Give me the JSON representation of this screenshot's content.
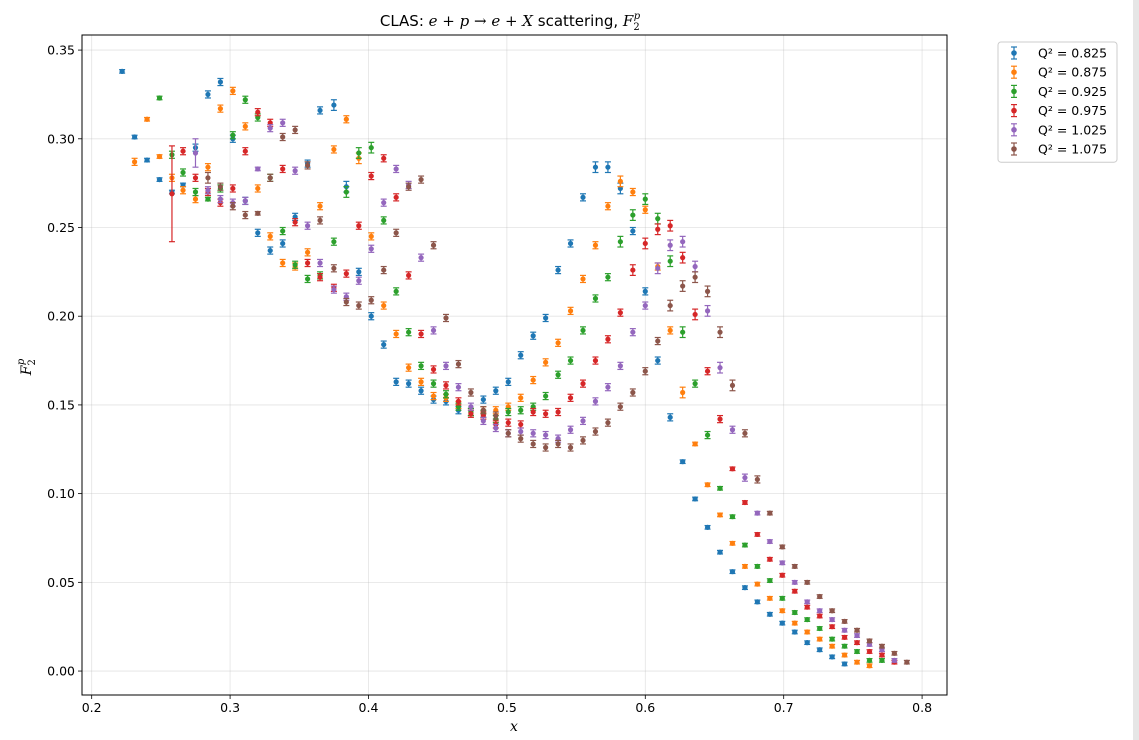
{
  "chart_data": {
    "type": "scatter",
    "title_prefix": "CLAS: ",
    "title_math": "e + p → e + X",
    "title_suffix": " scattering, ",
    "title_f": "F",
    "title_sub": "2",
    "title_sup": "p",
    "xlabel": "x",
    "ylabel_main": "F",
    "ylabel_sub": "2",
    "ylabel_sup": "p",
    "xlim": [
      0.193,
      0.818
    ],
    "ylim": [
      -0.0135,
      0.3585
    ],
    "xticks": [
      0.2,
      0.3,
      0.4,
      0.5,
      0.6,
      0.7,
      0.8
    ],
    "xtick_labels": [
      "0.2",
      "0.3",
      "0.4",
      "0.5",
      "0.6",
      "0.7",
      "0.8"
    ],
    "yticks": [
      0.0,
      0.05,
      0.1,
      0.15,
      0.2,
      0.25,
      0.3,
      0.35
    ],
    "ytick_labels": [
      "0.00",
      "0.05",
      "0.10",
      "0.15",
      "0.20",
      "0.25",
      "0.30",
      "0.35"
    ],
    "grid": true,
    "legend_position": "outside top-right",
    "series": [
      {
        "name": "Q² = 0.825",
        "color": "#1f77b4",
        "x": [
          0.222,
          0.231,
          0.24,
          0.249,
          0.258,
          0.266,
          0.275,
          0.284,
          0.293,
          0.302,
          0.311,
          0.32,
          0.329,
          0.338,
          0.347,
          0.356,
          0.365,
          0.375,
          0.384,
          0.393,
          0.402,
          0.411,
          0.42,
          0.429,
          0.438,
          0.447,
          0.456,
          0.465,
          0.474,
          0.483,
          0.492,
          0.501,
          0.51,
          0.519,
          0.528,
          0.537,
          0.546,
          0.555,
          0.564,
          0.573,
          0.582,
          0.591,
          0.6,
          0.609,
          0.618,
          0.627,
          0.636,
          0.645,
          0.654,
          0.663,
          0.672,
          0.681,
          0.69,
          0.699,
          0.708,
          0.717,
          0.726,
          0.735,
          0.744
        ],
        "y": [
          0.338,
          0.301,
          0.288,
          0.277,
          0.27,
          0.274,
          0.295,
          0.325,
          0.332,
          0.3,
          0.265,
          0.247,
          0.237,
          0.241,
          0.256,
          0.286,
          0.316,
          0.319,
          0.273,
          0.225,
          0.2,
          0.184,
          0.163,
          0.162,
          0.158,
          0.153,
          0.152,
          0.147,
          0.146,
          0.153,
          0.158,
          0.163,
          0.178,
          0.189,
          0.199,
          0.226,
          0.241,
          0.267,
          0.284,
          0.284,
          0.272,
          0.248,
          0.214,
          0.175,
          0.143,
          0.118,
          0.097,
          0.081,
          0.067,
          0.056,
          0.047,
          0.039,
          0.032,
          0.027,
          0.022,
          0.016,
          0.012,
          0.008,
          0.004
        ],
        "err": [
          0.001,
          0.001,
          0.001,
          0.001,
          0.001,
          0.001,
          0.002,
          0.002,
          0.002,
          0.002,
          0.002,
          0.002,
          0.002,
          0.002,
          0.002,
          0.002,
          0.002,
          0.003,
          0.003,
          0.002,
          0.002,
          0.002,
          0.002,
          0.002,
          0.002,
          0.002,
          0.002,
          0.002,
          0.002,
          0.002,
          0.002,
          0.002,
          0.002,
          0.002,
          0.002,
          0.002,
          0.002,
          0.002,
          0.003,
          0.003,
          0.003,
          0.002,
          0.002,
          0.002,
          0.002,
          0.001,
          0.001,
          0.001,
          0.001,
          0.001,
          0.001,
          0.001,
          0.001,
          0.001,
          0.001,
          0.001,
          0.001,
          0.001,
          0.001
        ]
      },
      {
        "name": "Q² = 0.875",
        "color": "#ff7f0e",
        "x": [
          0.231,
          0.24,
          0.249,
          0.258,
          0.266,
          0.275,
          0.284,
          0.293,
          0.302,
          0.311,
          0.32,
          0.329,
          0.338,
          0.347,
          0.356,
          0.365,
          0.375,
          0.384,
          0.393,
          0.402,
          0.411,
          0.42,
          0.429,
          0.438,
          0.447,
          0.456,
          0.465,
          0.474,
          0.483,
          0.492,
          0.501,
          0.51,
          0.519,
          0.528,
          0.537,
          0.546,
          0.555,
          0.564,
          0.573,
          0.582,
          0.591,
          0.6,
          0.609,
          0.618,
          0.627,
          0.636,
          0.645,
          0.654,
          0.663,
          0.672,
          0.681,
          0.69,
          0.699,
          0.708,
          0.717,
          0.726,
          0.735,
          0.744,
          0.753,
          0.762
        ],
        "y": [
          0.287,
          0.311,
          0.29,
          0.278,
          0.271,
          0.266,
          0.284,
          0.317,
          0.327,
          0.307,
          0.272,
          0.245,
          0.23,
          0.228,
          0.236,
          0.262,
          0.294,
          0.311,
          0.289,
          0.245,
          0.206,
          0.19,
          0.171,
          0.163,
          0.155,
          0.154,
          0.15,
          0.146,
          0.147,
          0.147,
          0.149,
          0.154,
          0.164,
          0.174,
          0.185,
          0.203,
          0.221,
          0.24,
          0.262,
          0.276,
          0.27,
          0.26,
          0.228,
          0.192,
          0.157,
          0.128,
          0.105,
          0.088,
          0.072,
          0.059,
          0.049,
          0.041,
          0.034,
          0.027,
          0.022,
          0.018,
          0.014,
          0.009,
          0.005,
          0.003
        ],
        "err": [
          0.002,
          0.001,
          0.001,
          0.002,
          0.002,
          0.002,
          0.002,
          0.002,
          0.002,
          0.002,
          0.002,
          0.002,
          0.002,
          0.002,
          0.002,
          0.002,
          0.002,
          0.002,
          0.003,
          0.002,
          0.002,
          0.002,
          0.002,
          0.002,
          0.002,
          0.002,
          0.002,
          0.002,
          0.002,
          0.002,
          0.002,
          0.002,
          0.002,
          0.002,
          0.002,
          0.002,
          0.002,
          0.002,
          0.002,
          0.003,
          0.002,
          0.002,
          0.002,
          0.002,
          0.003,
          0.001,
          0.001,
          0.001,
          0.001,
          0.001,
          0.001,
          0.001,
          0.001,
          0.001,
          0.001,
          0.001,
          0.001,
          0.001,
          0.001,
          0.001
        ]
      },
      {
        "name": "Q² = 0.925",
        "color": "#2ca02c",
        "x": [
          0.249,
          0.258,
          0.266,
          0.275,
          0.284,
          0.293,
          0.302,
          0.311,
          0.32,
          0.329,
          0.338,
          0.347,
          0.356,
          0.365,
          0.375,
          0.384,
          0.393,
          0.402,
          0.411,
          0.42,
          0.429,
          0.438,
          0.447,
          0.456,
          0.465,
          0.474,
          0.483,
          0.492,
          0.501,
          0.51,
          0.519,
          0.528,
          0.537,
          0.546,
          0.555,
          0.564,
          0.573,
          0.582,
          0.591,
          0.6,
          0.609,
          0.618,
          0.627,
          0.636,
          0.645,
          0.654,
          0.663,
          0.672,
          0.681,
          0.69,
          0.699,
          0.708,
          0.717,
          0.726,
          0.735,
          0.744,
          0.753,
          0.762,
          0.771
        ],
        "y": [
          0.323,
          0.291,
          0.281,
          0.27,
          0.266,
          0.272,
          0.302,
          0.322,
          0.312,
          0.278,
          0.248,
          0.229,
          0.221,
          0.223,
          0.242,
          0.27,
          0.292,
          0.295,
          0.254,
          0.214,
          0.191,
          0.172,
          0.162,
          0.156,
          0.149,
          0.146,
          0.145,
          0.142,
          0.146,
          0.147,
          0.149,
          0.155,
          0.167,
          0.175,
          0.192,
          0.21,
          0.222,
          0.242,
          0.257,
          0.266,
          0.255,
          0.231,
          0.191,
          0.162,
          0.133,
          0.103,
          0.087,
          0.071,
          0.059,
          0.051,
          0.041,
          0.033,
          0.029,
          0.024,
          0.018,
          0.014,
          0.011,
          0.006,
          0.006
        ],
        "err": [
          0.001,
          0.002,
          0.002,
          0.002,
          0.001,
          0.002,
          0.002,
          0.002,
          0.002,
          0.002,
          0.002,
          0.002,
          0.002,
          0.002,
          0.002,
          0.003,
          0.003,
          0.003,
          0.002,
          0.002,
          0.002,
          0.002,
          0.002,
          0.002,
          0.002,
          0.002,
          0.002,
          0.002,
          0.002,
          0.002,
          0.002,
          0.002,
          0.002,
          0.002,
          0.002,
          0.002,
          0.002,
          0.003,
          0.003,
          0.003,
          0.003,
          0.003,
          0.003,
          0.002,
          0.002,
          0.001,
          0.001,
          0.001,
          0.001,
          0.001,
          0.001,
          0.001,
          0.001,
          0.001,
          0.001,
          0.001,
          0.001,
          0.001,
          0.001
        ]
      },
      {
        "name": "Q² = 0.975",
        "color": "#d62728",
        "x": [
          0.258,
          0.266,
          0.275,
          0.284,
          0.293,
          0.302,
          0.311,
          0.32,
          0.329,
          0.338,
          0.347,
          0.356,
          0.365,
          0.375,
          0.384,
          0.393,
          0.402,
          0.411,
          0.42,
          0.429,
          0.438,
          0.447,
          0.456,
          0.465,
          0.474,
          0.483,
          0.492,
          0.501,
          0.51,
          0.519,
          0.528,
          0.537,
          0.546,
          0.555,
          0.564,
          0.573,
          0.582,
          0.591,
          0.6,
          0.609,
          0.618,
          0.627,
          0.636,
          0.645,
          0.654,
          0.663,
          0.672,
          0.681,
          0.69,
          0.699,
          0.708,
          0.717,
          0.726,
          0.735,
          0.744,
          0.753,
          0.762,
          0.771,
          0.78
        ],
        "y": [
          0.269,
          0.293,
          0.278,
          0.27,
          0.264,
          0.272,
          0.293,
          0.315,
          0.309,
          0.283,
          0.253,
          0.23,
          0.222,
          0.216,
          0.224,
          0.251,
          0.279,
          0.289,
          0.267,
          0.223,
          0.19,
          0.17,
          0.161,
          0.152,
          0.145,
          0.144,
          0.139,
          0.14,
          0.139,
          0.146,
          0.145,
          0.146,
          0.154,
          0.162,
          0.175,
          0.187,
          0.202,
          0.226,
          0.241,
          0.249,
          0.251,
          0.233,
          0.201,
          0.169,
          0.142,
          0.114,
          0.095,
          0.077,
          0.063,
          0.054,
          0.045,
          0.036,
          0.031,
          0.025,
          0.019,
          0.016,
          0.011,
          0.009,
          0.005
        ],
        "err": [
          0.027,
          0.002,
          0.002,
          0.002,
          0.002,
          0.002,
          0.002,
          0.002,
          0.002,
          0.002,
          0.002,
          0.002,
          0.002,
          0.002,
          0.002,
          0.002,
          0.002,
          0.002,
          0.002,
          0.002,
          0.002,
          0.002,
          0.002,
          0.002,
          0.002,
          0.002,
          0.002,
          0.002,
          0.002,
          0.002,
          0.002,
          0.002,
          0.002,
          0.002,
          0.002,
          0.002,
          0.002,
          0.003,
          0.003,
          0.003,
          0.003,
          0.003,
          0.003,
          0.002,
          0.002,
          0.001,
          0.001,
          0.001,
          0.001,
          0.001,
          0.001,
          0.001,
          0.001,
          0.001,
          0.001,
          0.001,
          0.001,
          0.001,
          0.001
        ]
      },
      {
        "name": "Q² = 1.025",
        "color": "#9467bd",
        "x": [
          0.275,
          0.284,
          0.293,
          0.302,
          0.311,
          0.32,
          0.329,
          0.338,
          0.347,
          0.356,
          0.365,
          0.375,
          0.384,
          0.393,
          0.402,
          0.411,
          0.42,
          0.429,
          0.438,
          0.447,
          0.456,
          0.465,
          0.474,
          0.483,
          0.492,
          0.501,
          0.51,
          0.519,
          0.528,
          0.537,
          0.546,
          0.555,
          0.564,
          0.573,
          0.582,
          0.591,
          0.6,
          0.609,
          0.618,
          0.627,
          0.636,
          0.645,
          0.654,
          0.663,
          0.672,
          0.681,
          0.69,
          0.699,
          0.708,
          0.717,
          0.726,
          0.735,
          0.744,
          0.753,
          0.762,
          0.771,
          0.78
        ],
        "y": [
          0.292,
          0.271,
          0.266,
          0.264,
          0.265,
          0.283,
          0.306,
          0.309,
          0.282,
          0.251,
          0.23,
          0.215,
          0.211,
          0.22,
          0.238,
          0.264,
          0.283,
          0.274,
          0.233,
          0.192,
          0.172,
          0.16,
          0.149,
          0.141,
          0.137,
          0.134,
          0.135,
          0.134,
          0.133,
          0.131,
          0.136,
          0.141,
          0.152,
          0.16,
          0.172,
          0.191,
          0.206,
          0.227,
          0.24,
          0.242,
          0.228,
          0.203,
          0.171,
          0.136,
          0.109,
          0.089,
          0.073,
          0.061,
          0.05,
          0.039,
          0.034,
          0.029,
          0.023,
          0.02,
          0.015,
          0.012,
          0.006
        ],
        "err": [
          0.008,
          0.002,
          0.002,
          0.002,
          0.002,
          0.001,
          0.002,
          0.002,
          0.002,
          0.002,
          0.002,
          0.002,
          0.002,
          0.002,
          0.002,
          0.002,
          0.002,
          0.002,
          0.002,
          0.002,
          0.002,
          0.002,
          0.002,
          0.002,
          0.002,
          0.002,
          0.002,
          0.002,
          0.002,
          0.002,
          0.002,
          0.002,
          0.002,
          0.002,
          0.002,
          0.002,
          0.002,
          0.003,
          0.003,
          0.003,
          0.003,
          0.003,
          0.003,
          0.002,
          0.002,
          0.001,
          0.001,
          0.001,
          0.001,
          0.001,
          0.001,
          0.001,
          0.001,
          0.001,
          0.001,
          0.001,
          0.001
        ]
      },
      {
        "name": "Q² = 1.075",
        "color": "#8c564b",
        "x": [
          0.284,
          0.293,
          0.302,
          0.311,
          0.32,
          0.329,
          0.338,
          0.347,
          0.356,
          0.365,
          0.375,
          0.384,
          0.393,
          0.402,
          0.411,
          0.42,
          0.429,
          0.438,
          0.447,
          0.456,
          0.465,
          0.474,
          0.483,
          0.492,
          0.501,
          0.51,
          0.519,
          0.528,
          0.537,
          0.546,
          0.555,
          0.564,
          0.573,
          0.582,
          0.591,
          0.6,
          0.609,
          0.618,
          0.627,
          0.636,
          0.645,
          0.654,
          0.663,
          0.672,
          0.681,
          0.69,
          0.699,
          0.708,
          0.717,
          0.726,
          0.735,
          0.744,
          0.753,
          0.762,
          0.771,
          0.78,
          0.789
        ],
        "y": [
          0.278,
          0.273,
          0.262,
          0.257,
          0.258,
          0.278,
          0.301,
          0.305,
          0.285,
          0.254,
          0.227,
          0.208,
          0.206,
          0.209,
          0.226,
          0.247,
          0.273,
          0.277,
          0.24,
          0.199,
          0.173,
          0.157,
          0.147,
          0.144,
          0.134,
          0.131,
          0.128,
          0.126,
          0.128,
          0.126,
          0.13,
          0.135,
          0.14,
          0.149,
          0.157,
          0.169,
          0.186,
          0.206,
          0.217,
          0.222,
          0.214,
          0.191,
          0.161,
          0.134,
          0.108,
          0.089,
          0.07,
          0.059,
          0.05,
          0.042,
          0.034,
          0.028,
          0.023,
          0.017,
          0.014,
          0.01,
          0.005
        ],
        "err": [
          0.003,
          0.002,
          0.002,
          0.002,
          0.001,
          0.002,
          0.002,
          0.002,
          0.002,
          0.002,
          0.002,
          0.002,
          0.002,
          0.002,
          0.002,
          0.002,
          0.002,
          0.002,
          0.002,
          0.002,
          0.002,
          0.002,
          0.002,
          0.002,
          0.002,
          0.002,
          0.002,
          0.002,
          0.002,
          0.002,
          0.002,
          0.002,
          0.002,
          0.002,
          0.002,
          0.002,
          0.002,
          0.003,
          0.003,
          0.003,
          0.003,
          0.003,
          0.003,
          0.002,
          0.002,
          0.001,
          0.001,
          0.001,
          0.001,
          0.001,
          0.001,
          0.001,
          0.001,
          0.001,
          0.001,
          0.001,
          0.001
        ]
      }
    ]
  }
}
